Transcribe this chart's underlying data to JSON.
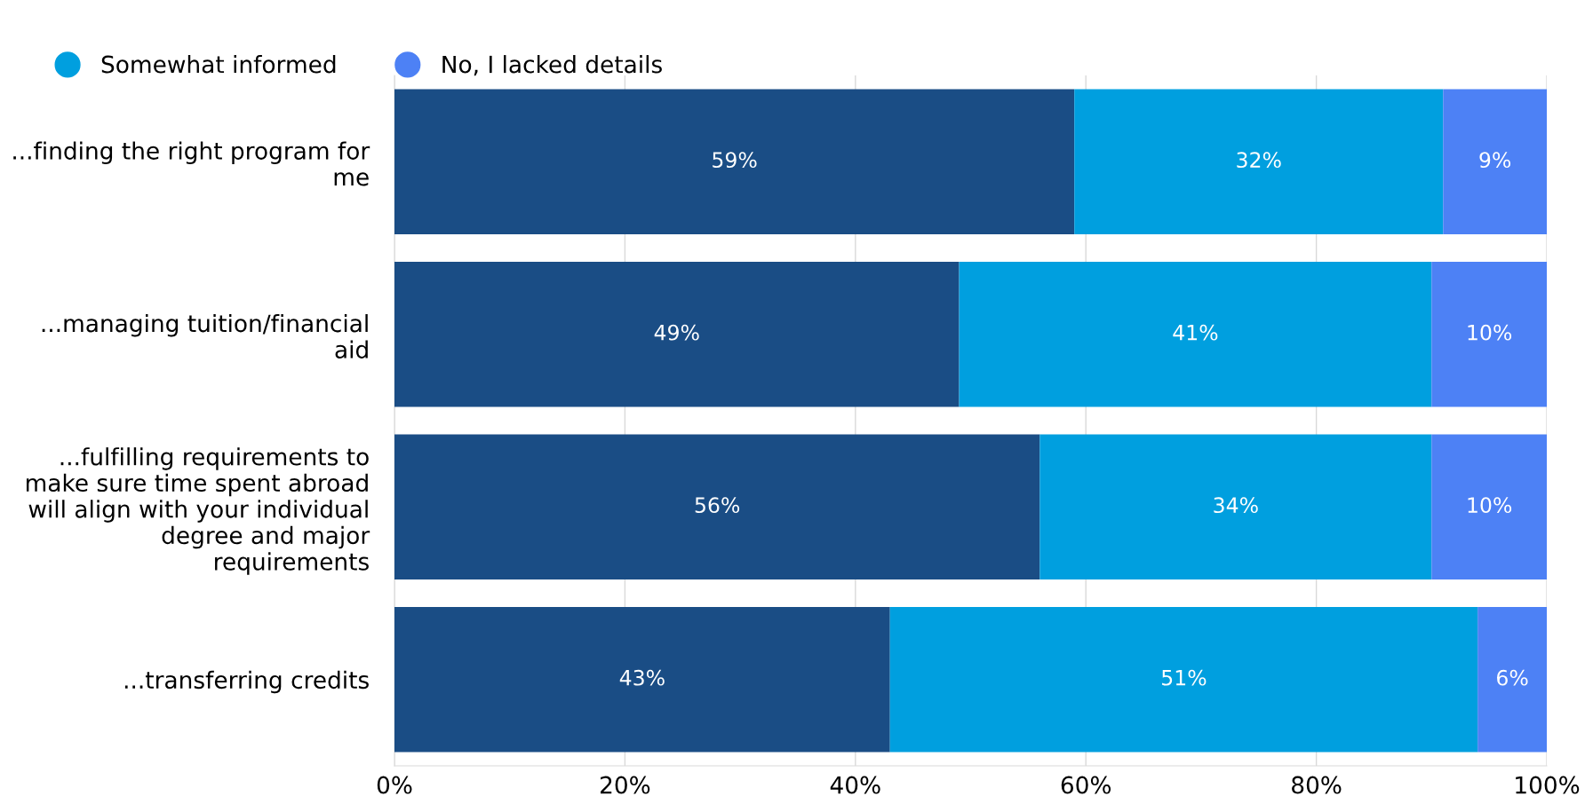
{
  "chart_data": {
    "type": "bar",
    "orientation": "horizontal",
    "stacked": true,
    "categories": [
      "...finding the right program for me",
      "...managing tuition/financial aid",
      "...fulfilling requirements to make sure time spent abroad will align with your individual degree and major requirements",
      "...transferring credits"
    ],
    "series": [
      {
        "color": "#1a4d85",
        "values": [
          59,
          49,
          56,
          43
        ],
        "value_labels": [
          "59%",
          "49%",
          "56%",
          "43%"
        ]
      },
      {
        "name": "Somewhat informed",
        "color": "#009fdf",
        "values": [
          32,
          41,
          34,
          51
        ],
        "value_labels": [
          "32%",
          "41%",
          "34%",
          "51%"
        ]
      },
      {
        "name": "No, I lacked details",
        "color": "#4d81f5",
        "values": [
          9,
          10,
          10,
          6
        ],
        "value_labels": [
          "9%",
          "10%",
          "10%",
          "6%"
        ]
      }
    ],
    "xlim": [
      0,
      100
    ],
    "xticks": [
      {
        "value": 0,
        "label": "0%"
      },
      {
        "value": 20,
        "label": "20%"
      },
      {
        "value": 40,
        "label": "40%"
      },
      {
        "value": 60,
        "label": "60%"
      },
      {
        "value": 80,
        "label": "80%"
      },
      {
        "value": 100,
        "label": "100%"
      }
    ],
    "grid": "x",
    "legend": "top left"
  }
}
